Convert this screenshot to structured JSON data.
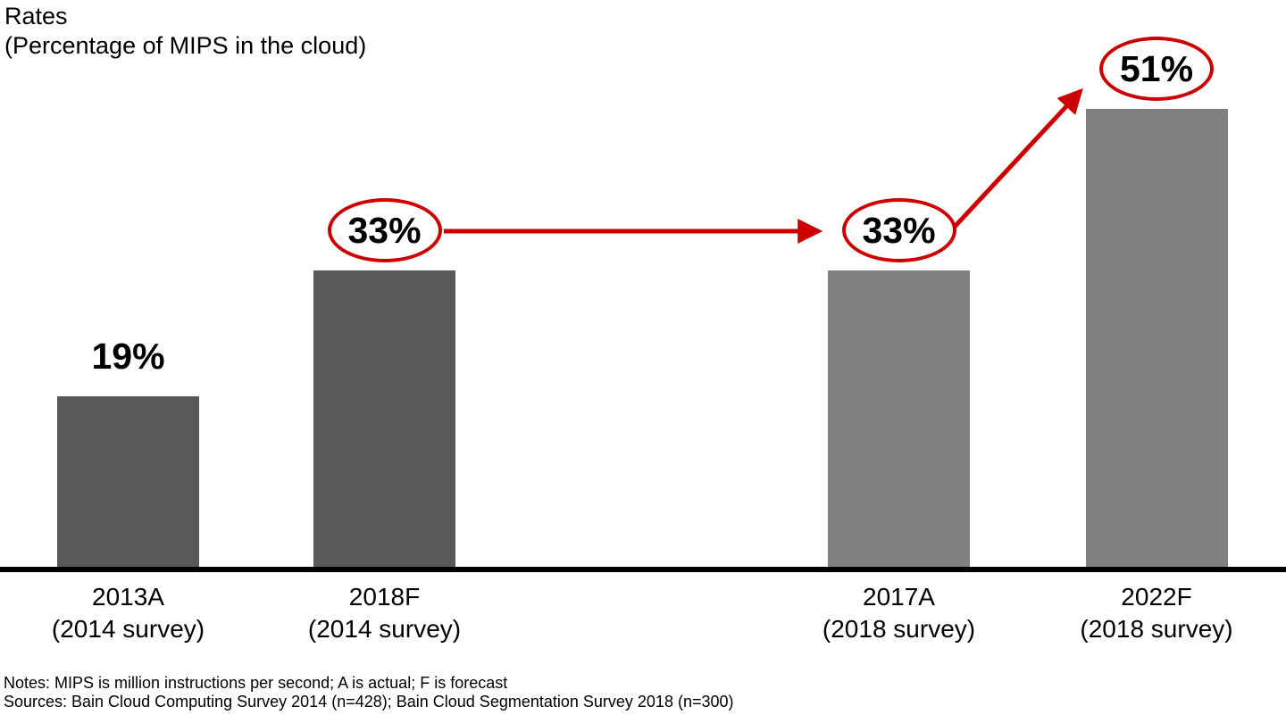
{
  "header": {
    "title_line1": "Rates",
    "title_line2": "(Percentage of MIPS in the cloud)"
  },
  "chart_data": {
    "type": "bar",
    "title": "Rates (Percentage of MIPS in the cloud)",
    "ylabel": "Percentage of MIPS in the cloud",
    "value_unit": "%",
    "ylim": [
      0,
      60
    ],
    "grid": false,
    "legend": false,
    "categories": [
      "2013A (2014 survey)",
      "2018F (2014 survey)",
      "2017A (2018 survey)",
      "2022F (2018 survey)"
    ],
    "bars": [
      {
        "label": "2013A",
        "sublabel": "(2014 survey)",
        "value": 19,
        "circled": false,
        "color": "#58595B"
      },
      {
        "label": "2018F",
        "sublabel": "(2014 survey)",
        "value": 33,
        "circled": true,
        "color": "#58595B"
      },
      {
        "label": "2017A",
        "sublabel": "(2018 survey)",
        "value": 33,
        "circled": true,
        "color": "#808080"
      },
      {
        "label": "2022F",
        "sublabel": "(2018 survey)",
        "value": 51,
        "circled": true,
        "color": "#808080"
      }
    ],
    "arrows": [
      {
        "from_bar": 1,
        "to_bar": 2
      },
      {
        "from_bar": 2,
        "to_bar": 3
      }
    ],
    "annotation_color": "#CC0000",
    "axis_color": "#000000",
    "bar_colors": {
      "2014_survey": "#58595B",
      "2018_survey": "#808080"
    }
  },
  "footer": {
    "notes": "Notes: MIPS is million instructions per second; A is actual; F is forecast",
    "sources": "Sources: Bain Cloud Computing Survey 2014 (n=428); Bain Cloud Segmentation Survey 2018 (n=300)"
  }
}
